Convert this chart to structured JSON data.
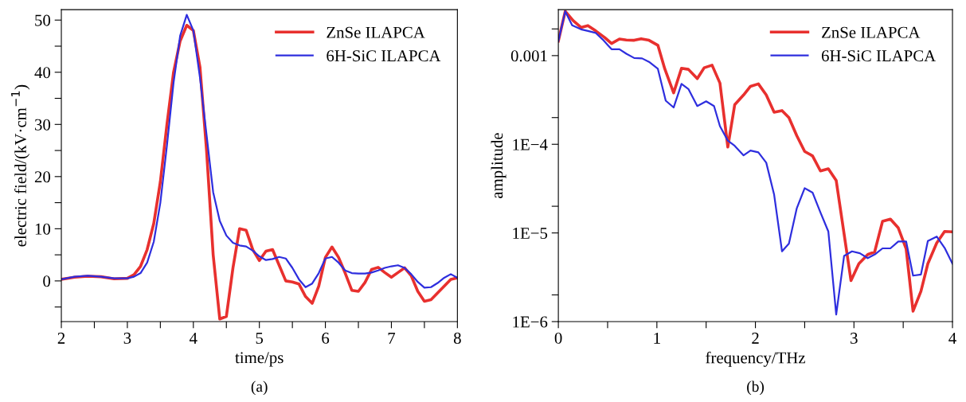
{
  "chart_data": [
    {
      "type": "line",
      "xlabel": "time/ps",
      "ylabel": "electric field/(kV·cm$^{−1}$)",
      "annotations": [
        "(a)"
      ],
      "legend": "top right",
      "grid": false,
      "xlim": [
        2,
        8
      ],
      "xticks": [
        2,
        {
          "value": 2.5,
          "label": null
        },
        3,
        {
          "value": 3.5,
          "label": null
        },
        4,
        {
          "value": 4.5,
          "label": null
        },
        5,
        {
          "value": 5.5,
          "label": null
        },
        6,
        {
          "value": 6.5,
          "label": null
        },
        7,
        {
          "value": 7.5,
          "label": null
        },
        8
      ],
      "ylim": [
        -7.8,
        52
      ],
      "yticks": [
        0,
        {
          "value": 5,
          "label": null
        },
        10,
        {
          "value": 15,
          "label": null
        },
        20,
        {
          "value": 25,
          "label": null
        },
        30,
        {
          "value": 35,
          "label": null
        },
        40,
        {
          "value": 45,
          "label": null
        },
        50,
        {
          "value": -5,
          "label": null
        }
      ],
      "x": [
        2.0,
        2.2,
        2.4,
        2.6,
        2.8,
        3.0,
        3.1,
        3.2,
        3.3,
        3.4,
        3.5,
        3.6,
        3.7,
        3.8,
        3.9,
        4.0,
        4.1,
        4.2,
        4.3,
        4.4,
        4.5,
        4.6,
        4.7,
        4.8,
        4.9,
        5.0,
        5.1,
        5.2,
        5.3,
        5.4,
        5.5,
        5.6,
        5.7,
        5.8,
        5.9,
        6.0,
        6.1,
        6.2,
        6.3,
        6.4,
        6.5,
        6.6,
        6.7,
        6.8,
        6.9,
        7.0,
        7.1,
        7.2,
        7.3,
        7.4,
        7.5,
        7.6,
        7.7,
        7.8,
        7.9,
        8.0
      ],
      "series": [
        {
          "name": "ZnSe ILAPCA",
          "color": "#e8302e",
          "values": [
            0.3,
            0.7,
            0.9,
            0.8,
            0.4,
            0.5,
            1.2,
            2.8,
            6,
            11,
            19,
            30,
            40,
            46,
            49,
            48,
            41,
            25,
            5,
            -7.3,
            -6.8,
            2.5,
            10,
            9.7,
            6,
            3.9,
            5.7,
            6,
            3,
            0,
            -0.2,
            -0.6,
            -3,
            -4.3,
            -1,
            4.5,
            6.5,
            4.5,
            1.5,
            -1.8,
            -2,
            -0.3,
            2.2,
            2.6,
            1.6,
            0.7,
            1.6,
            2.5,
            1,
            -2,
            -3.9,
            -3.6,
            -2.3,
            -1,
            0.3,
            0.6
          ]
        },
        {
          "name": "6H-SiC ILAPCA",
          "color": "#2e2ede",
          "values": [
            0.3,
            0.8,
            1.0,
            0.8,
            0.5,
            0.5,
            0.8,
            1.5,
            3.5,
            7.5,
            15,
            26,
            38,
            47,
            51,
            48,
            39,
            28,
            17,
            11.5,
            8.7,
            7.3,
            6.8,
            6.6,
            5.8,
            4.7,
            4.0,
            4.2,
            4.6,
            4.3,
            2.5,
            0.3,
            -1.2,
            -0.5,
            1.5,
            4.3,
            4.6,
            3.5,
            2,
            1.5,
            1.4,
            1.4,
            1.6,
            2,
            2.5,
            2.8,
            3,
            2.5,
            1.3,
            -0.2,
            -1.3,
            -1.2,
            -0.4,
            0.6,
            1.3,
            0.6
          ]
        }
      ]
    },
    {
      "type": "line",
      "xlabel": "frequency/THz",
      "ylabel": "amplitude",
      "annotations": [
        "(b)"
      ],
      "legend": "top right",
      "grid": false,
      "log": "y",
      "xlim": [
        0,
        4
      ],
      "xticks": [
        0,
        {
          "value": 0.5,
          "label": null
        },
        1,
        {
          "value": 1.5,
          "label": null
        },
        2,
        {
          "value": 2.5,
          "label": null
        },
        3,
        {
          "value": 3.5,
          "label": null
        },
        4
      ],
      "ylim": [
        1e-06,
        0.0033
      ],
      "yticks": [
        {
          "value": 1e-06,
          "label": "1E−6"
        },
        {
          "value": 1e-05,
          "label": "1E−5"
        },
        {
          "value": 0.0001,
          "label": "1E−4"
        },
        {
          "value": 0.001,
          "label": "0.001"
        },
        {
          "value": 2e-06,
          "label": null
        },
        {
          "value": 2e-05,
          "label": null
        },
        {
          "value": 0.0002,
          "label": null
        },
        {
          "value": 0.002,
          "label": null
        }
      ],
      "series": [
        {
          "name": "ZnSe ILAPCA",
          "color": "#e8302e",
          "x": [
            0,
            0.07,
            0.15,
            0.23,
            0.3,
            0.38,
            0.47,
            0.54,
            0.62,
            0.69,
            0.77,
            0.84,
            0.92,
            1.01,
            1.08,
            1.17,
            1.25,
            1.32,
            1.41,
            1.48,
            1.56,
            1.64,
            1.72,
            1.79,
            1.88,
            1.95,
            2.03,
            2.11,
            2.19,
            2.27,
            2.34,
            2.42,
            2.5,
            2.58,
            2.66,
            2.74,
            2.82,
            2.97,
            3.05,
            3.14,
            3.21,
            3.29,
            3.37,
            3.45,
            3.53,
            3.6,
            3.68,
            3.75,
            3.84,
            3.92,
            4.0
          ],
          "values": [
            0.00146,
            0.00316,
            0.00248,
            0.00208,
            0.00218,
            0.0019,
            0.0016,
            0.00137,
            0.00154,
            0.0015,
            0.00149,
            0.00155,
            0.00149,
            0.00131,
            0.00071,
            0.00038,
            0.00072,
            0.0007,
            0.00055,
            0.00073,
            0.00078,
            0.00049,
            9.3e-05,
            0.00028,
            0.00036,
            0.00045,
            0.00048,
            0.00036,
            0.00023,
            0.00024,
            0.0002,
            0.000125,
            8.3e-05,
            7.4e-05,
            5e-05,
            5.3e-05,
            3.9e-05,
            2.9e-06,
            4.5e-06,
            5.7e-06,
            6.1e-06,
            1.35e-05,
            1.43e-05,
            1.14e-05,
            6.6e-06,
            1.31e-06,
            2.2e-06,
            4.5e-06,
            7.7e-06,
            1.04e-05,
            1.03e-05
          ]
        },
        {
          "name": "6H-SiC ILAPCA",
          "color": "#2e2ede",
          "x": [
            0,
            0.07,
            0.14,
            0.23,
            0.3,
            0.38,
            0.45,
            0.54,
            0.62,
            0.69,
            0.77,
            0.85,
            0.92,
            1.01,
            1.09,
            1.17,
            1.25,
            1.32,
            1.41,
            1.5,
            1.58,
            1.64,
            1.72,
            1.79,
            1.88,
            1.95,
            2.03,
            2.11,
            2.19,
            2.27,
            2.34,
            2.42,
            2.5,
            2.58,
            2.66,
            2.74,
            2.82,
            2.9,
            2.98,
            3.06,
            3.14,
            3.22,
            3.29,
            3.37,
            3.45,
            3.53,
            3.6,
            3.68,
            3.75,
            3.84,
            3.92,
            4.0
          ],
          "values": [
            0.00146,
            0.00316,
            0.0022,
            0.00198,
            0.0019,
            0.0018,
            0.00152,
            0.00118,
            0.00118,
            0.00105,
            0.00094,
            0.00093,
            0.00085,
            0.00071,
            0.00031,
            0.00026,
            0.00048,
            0.00042,
            0.00027,
            0.000305,
            0.00027,
            0.00016,
            0.00011,
            9.6e-05,
            7.5e-05,
            8.5e-05,
            8.1e-05,
            6.2e-05,
            2.7e-05,
            6.2e-06,
            7.6e-06,
            1.9e-05,
            3.2e-05,
            2.85e-05,
            1.7e-05,
            1.04e-05,
            1.2e-06,
            5.5e-06,
            6.2e-06,
            5.9e-06,
            5.2e-06,
            5.8e-06,
            6.7e-06,
            6.7e-06,
            8e-06,
            8e-06,
            3.3e-06,
            3.4e-06,
            8.1e-06,
            9.1e-06,
            6.8e-06,
            4.5e-06
          ]
        }
      ]
    }
  ]
}
